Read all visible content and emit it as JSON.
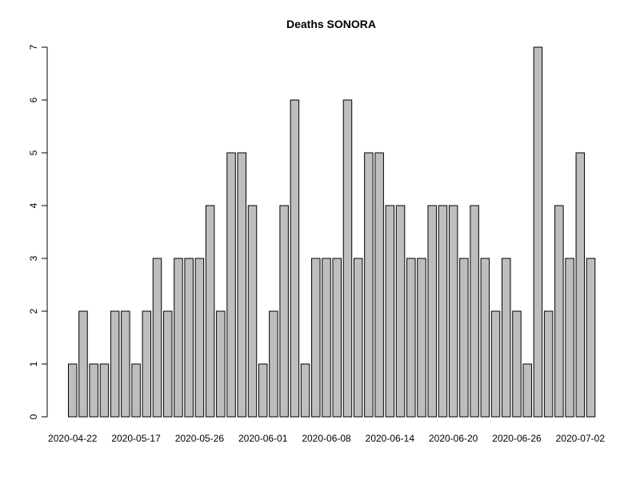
{
  "chart_data": {
    "type": "bar",
    "title": "Deaths SONORA",
    "xlabel": "",
    "ylabel": "",
    "ylim": [
      0,
      7
    ],
    "y_ticks": [
      0,
      1,
      2,
      3,
      4,
      5,
      6,
      7
    ],
    "bar_color": "#bebebe",
    "border_color": "#000000",
    "values": [
      1,
      2,
      1,
      1,
      2,
      2,
      1,
      2,
      3,
      2,
      3,
      3,
      3,
      4,
      2,
      5,
      5,
      4,
      1,
      2,
      4,
      6,
      1,
      3,
      3,
      3,
      6,
      3,
      5,
      5,
      4,
      4,
      3,
      3,
      4,
      4,
      4,
      3,
      4,
      3,
      2,
      3,
      2,
      1,
      7,
      2,
      4,
      3,
      5,
      3
    ],
    "x_tick_labels": [
      {
        "index": 0,
        "label": "2020-04-22"
      },
      {
        "index": 6,
        "label": "2020-05-17"
      },
      {
        "index": 12,
        "label": "2020-05-26"
      },
      {
        "index": 18,
        "label": "2020-06-01"
      },
      {
        "index": 24,
        "label": "2020-06-08"
      },
      {
        "index": 30,
        "label": "2020-06-14"
      },
      {
        "index": 36,
        "label": "2020-06-20"
      },
      {
        "index": 42,
        "label": "2020-06-26"
      },
      {
        "index": 48,
        "label": "2020-07-02"
      }
    ]
  }
}
